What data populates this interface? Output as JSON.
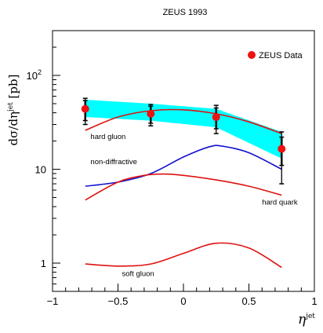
{
  "chart_data": {
    "type": "line",
    "title": "ZEUS 1993",
    "xlabel_main": "η",
    "xlabel_sup": "jet",
    "ylabel_main": "dσ/dη",
    "ylabel_sup": "jet",
    "ylabel_unit": " [pb]",
    "xlim": [
      -1,
      1
    ],
    "ylim": [
      0.5,
      300
    ],
    "yscale": "log",
    "x_ticks": [
      "-1",
      "-0.5",
      "0",
      "0.5",
      "1"
    ],
    "y_ticks": [
      {
        "value": 1,
        "label": "1",
        "sup": ""
      },
      {
        "value": 10,
        "label": "10",
        "sup": ""
      },
      {
        "value": 100,
        "label": "10",
        "sup": "2"
      }
    ],
    "legend": {
      "label": "ZEUS Data",
      "position": "top-right"
    },
    "colors": {
      "data": "#ee1111",
      "curves": "#dd1111",
      "nondiffractive": "#1111cc",
      "band": "#00ffff"
    },
    "data_points": [
      {
        "x": -0.75,
        "y": 44,
        "stat_lo": 33,
        "stat_hi": 54,
        "tot_lo": 30,
        "tot_hi": 57
      },
      {
        "x": -0.25,
        "y": 39,
        "stat_lo": 31,
        "stat_hi": 47,
        "tot_lo": 29,
        "tot_hi": 49
      },
      {
        "x": 0.25,
        "y": 36,
        "stat_lo": 27,
        "stat_hi": 45,
        "tot_lo": 24,
        "tot_hi": 48
      },
      {
        "x": 0.75,
        "y": 16.5,
        "stat_lo": 11,
        "stat_hi": 22,
        "tot_lo": 7,
        "tot_hi": 25
      }
    ],
    "band": {
      "x": [
        -0.75,
        -0.25,
        0.25,
        0.75
      ],
      "low": [
        36,
        33,
        28,
        13
      ],
      "high": [
        55,
        50,
        44,
        25
      ]
    },
    "series": [
      {
        "name": "hard gluon",
        "x": [
          -0.75,
          -0.5,
          -0.25,
          0.0,
          0.25,
          0.5,
          0.75
        ],
        "y": [
          26,
          36,
          42,
          43,
          39,
          32,
          24
        ]
      },
      {
        "name": "non-diffractive",
        "x": [
          -0.75,
          -0.5,
          -0.25,
          0.0,
          0.2,
          0.3,
          0.5,
          0.75
        ],
        "y": [
          6.6,
          7.3,
          9.0,
          13.5,
          17.4,
          17.6,
          15.0,
          10.0
        ]
      },
      {
        "name": "hard quark",
        "x": [
          -0.75,
          -0.5,
          -0.3,
          -0.15,
          0.0,
          0.25,
          0.5,
          0.75
        ],
        "y": [
          4.7,
          7.3,
          8.6,
          8.9,
          8.6,
          7.7,
          6.6,
          5.3
        ]
      },
      {
        "name": "soft gluon",
        "x": [
          -0.75,
          -0.5,
          -0.25,
          0.0,
          0.25,
          0.5,
          0.75
        ],
        "y": [
          0.98,
          0.93,
          0.98,
          1.27,
          1.63,
          1.45,
          0.9
        ]
      }
    ],
    "annotations": [
      {
        "text": "hard gluon",
        "x": -0.71,
        "y": 21
      },
      {
        "text": "non-diffractive",
        "x": -0.71,
        "y": 11.3
      },
      {
        "text": "hard quark",
        "x": 0.6,
        "y": 4.2
      },
      {
        "text": "soft gluon",
        "x": -0.47,
        "y": 0.73
      }
    ]
  }
}
